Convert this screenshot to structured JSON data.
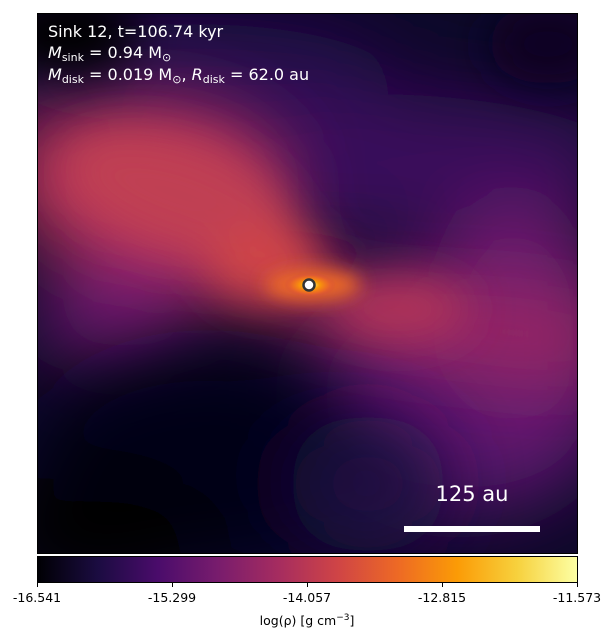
{
  "figure": {
    "info": {
      "line1": "Sink 12, t=106.74 kyr",
      "msink_symbol": "M",
      "msink_sub": "sink",
      "msink_value": " = 0.94 M",
      "msun_sub": "⊙",
      "mdisk_symbol": "M",
      "mdisk_sub": "disk",
      "mdisk_value": " = 0.019 M",
      "mdisk_sun_sub": "⊙",
      "rdisk_sep": ", ",
      "rdisk_symbol": "R",
      "rdisk_sub": "disk",
      "rdisk_value": " = 62.0 au"
    },
    "scale_bar": {
      "label": "125 au"
    },
    "colorbar": {
      "min": -16.541,
      "max": -11.573,
      "ticks": [
        "-16.541",
        "-15.299",
        "-14.057",
        "-12.815",
        "-11.573"
      ],
      "tick_values": [
        -16.541,
        -15.299,
        -14.057,
        -12.815,
        -11.573
      ],
      "title_main": "log(ρ) [g cm",
      "title_sup": "−3",
      "title_end": "]",
      "colormap": "inferno",
      "colors": [
        "#000004",
        "#1b0c41",
        "#4a0c6b",
        "#781c6d",
        "#a52c60",
        "#cf4446",
        "#ed6925",
        "#fb9b06",
        "#f7d13d",
        "#fcffa4"
      ]
    },
    "sink": {
      "marker_fill": "#ffffff",
      "marker_edge": "#333333"
    }
  }
}
